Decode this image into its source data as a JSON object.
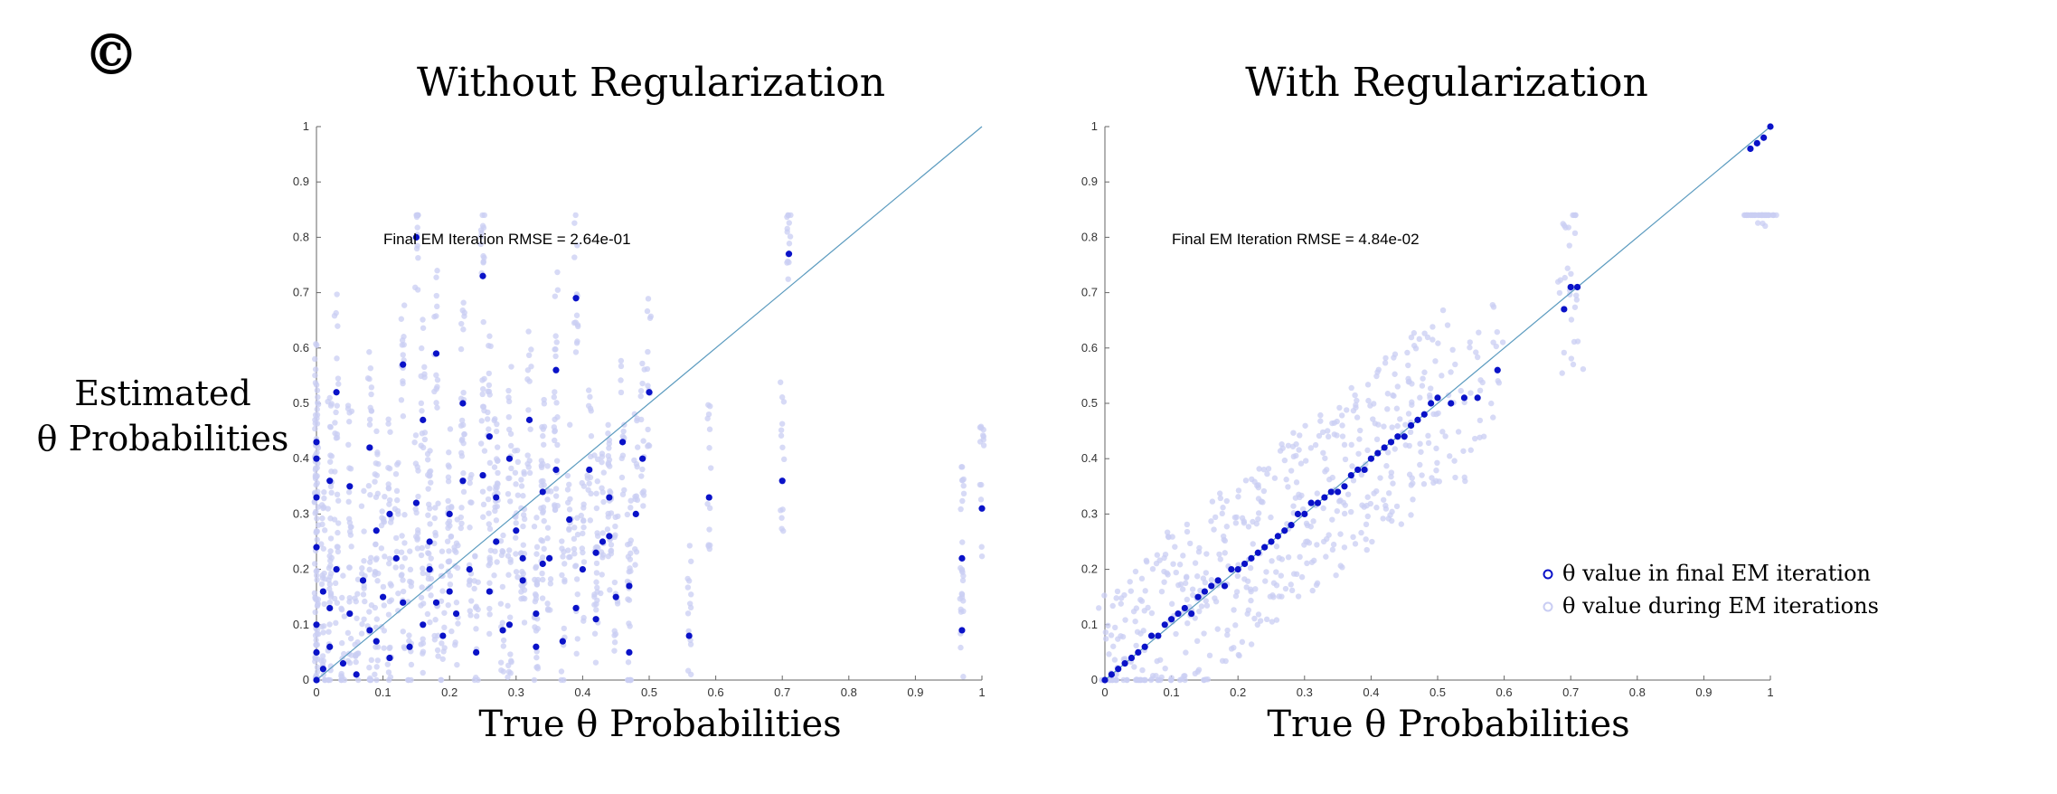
{
  "figure": {
    "panel_label": "©",
    "ylabel_line1": "Estimated",
    "ylabel_line2": "θ Probabilities"
  },
  "chart_data": [
    {
      "type": "scatter",
      "title": "Without Regularization",
      "xlabel": "True θ Probabilities",
      "ylabel": "",
      "xlim": [
        0,
        1
      ],
      "ylim": [
        0,
        1
      ],
      "xticks": [
        "0",
        "0.1",
        "0.2",
        "0.3",
        "0.4",
        "0.5",
        "0.6",
        "0.7",
        "0.8",
        "0.9",
        "1"
      ],
      "yticks": [
        "0",
        "0.1",
        "0.2",
        "0.3",
        "0.4",
        "0.5",
        "0.6",
        "0.7",
        "0.8",
        "0.9",
        "1"
      ],
      "annotation": "Final EM Iteration RMSE = 2.64e-01",
      "reference_line": {
        "x": [
          0,
          1
        ],
        "y": [
          0,
          1
        ],
        "color": "#5b9bbf"
      },
      "series": [
        {
          "name": "θ value in final EM iteration",
          "color": "#0a12c8",
          "x": [
            0.0,
            0.0,
            0.0,
            0.0,
            0.0,
            0.0,
            0.0,
            0.01,
            0.01,
            0.02,
            0.02,
            0.03,
            0.03,
            0.04,
            0.05,
            0.06,
            0.07,
            0.08,
            0.09,
            0.1,
            0.11,
            0.12,
            0.13,
            0.14,
            0.15,
            0.16,
            0.17,
            0.18,
            0.19,
            0.2,
            0.21,
            0.22,
            0.23,
            0.24,
            0.25,
            0.26,
            0.27,
            0.28,
            0.29,
            0.3,
            0.31,
            0.32,
            0.33,
            0.34,
            0.35,
            0.36,
            0.37,
            0.38,
            0.39,
            0.4,
            0.41,
            0.42,
            0.43,
            0.44,
            0.45,
            0.46,
            0.47,
            0.48,
            0.49,
            0.5,
            0.56,
            0.59,
            0.7,
            0.71,
            0.97,
            0.97,
            1.0,
            0.13,
            0.16,
            0.2,
            0.27,
            0.36,
            0.05,
            0.09,
            0.26,
            0.33,
            0.17,
            0.22,
            0.39,
            0.11,
            0.29,
            0.42,
            0.08,
            0.18,
            0.25,
            0.34,
            0.44,
            0.02,
            0.15,
            0.31,
            0.47
          ],
          "y": [
            0.0,
            0.05,
            0.1,
            0.24,
            0.33,
            0.4,
            0.43,
            0.02,
            0.16,
            0.06,
            0.13,
            0.2,
            0.52,
            0.03,
            0.12,
            0.01,
            0.18,
            0.09,
            0.07,
            0.15,
            0.04,
            0.22,
            0.14,
            0.06,
            0.8,
            0.1,
            0.25,
            0.59,
            0.08,
            0.3,
            0.12,
            0.36,
            0.2,
            0.05,
            0.73,
            0.16,
            0.33,
            0.09,
            0.4,
            0.27,
            0.18,
            0.47,
            0.12,
            0.34,
            0.22,
            0.56,
            0.07,
            0.29,
            0.69,
            0.2,
            0.38,
            0.11,
            0.25,
            0.33,
            0.15,
            0.43,
            0.05,
            0.3,
            0.4,
            0.52,
            0.08,
            0.33,
            0.36,
            0.77,
            0.22,
            0.09,
            0.31,
            0.57,
            0.47,
            0.16,
            0.25,
            0.38,
            0.35,
            0.27,
            0.44,
            0.06,
            0.2,
            0.5,
            0.13,
            0.3,
            0.1,
            0.23,
            0.42,
            0.14,
            0.37,
            0.21,
            0.26,
            0.36,
            0.32,
            0.22,
            0.17
          ],
          "marker": "filled-circle"
        },
        {
          "name": "θ value during EM iterations",
          "color": "#c9cdf3",
          "generated": "faint vertical streaks of intermediate EM values around each final estimate",
          "marker": "faint-circle"
        }
      ]
    },
    {
      "type": "scatter",
      "title": "With Regularization",
      "xlabel": "True θ Probabilities",
      "ylabel": "",
      "xlim": [
        0,
        1
      ],
      "ylim": [
        0,
        1
      ],
      "xticks": [
        "0",
        "0.1",
        "0.2",
        "0.3",
        "0.4",
        "0.5",
        "0.6",
        "0.7",
        "0.8",
        "0.9",
        "1"
      ],
      "yticks": [
        "0",
        "0.1",
        "0.2",
        "0.3",
        "0.4",
        "0.5",
        "0.6",
        "0.7",
        "0.8",
        "0.9",
        "1"
      ],
      "annotation": "Final EM Iteration RMSE = 4.84e-02",
      "reference_line": {
        "x": [
          0,
          1
        ],
        "y": [
          0,
          1
        ],
        "color": "#5b9bbf"
      },
      "legend": {
        "position": "bottom-right",
        "items": [
          "θ value in final EM iteration",
          "θ value during EM iterations"
        ]
      },
      "series": [
        {
          "name": "θ value in final EM iteration",
          "color": "#0a12c8",
          "x": [
            0.0,
            0.01,
            0.02,
            0.03,
            0.04,
            0.05,
            0.06,
            0.07,
            0.08,
            0.09,
            0.1,
            0.11,
            0.12,
            0.13,
            0.14,
            0.15,
            0.16,
            0.17,
            0.18,
            0.19,
            0.2,
            0.21,
            0.22,
            0.23,
            0.24,
            0.25,
            0.26,
            0.27,
            0.28,
            0.29,
            0.3,
            0.31,
            0.32,
            0.33,
            0.34,
            0.35,
            0.36,
            0.37,
            0.38,
            0.39,
            0.4,
            0.41,
            0.42,
            0.43,
            0.44,
            0.45,
            0.46,
            0.47,
            0.48,
            0.49,
            0.5,
            0.52,
            0.54,
            0.56,
            0.59,
            0.69,
            0.7,
            0.71,
            0.97,
            0.98,
            0.99,
            1.0
          ],
          "y": [
            0.0,
            0.01,
            0.02,
            0.03,
            0.04,
            0.05,
            0.06,
            0.08,
            0.08,
            0.1,
            0.11,
            0.12,
            0.13,
            0.12,
            0.15,
            0.16,
            0.17,
            0.18,
            0.17,
            0.2,
            0.2,
            0.21,
            0.22,
            0.23,
            0.24,
            0.25,
            0.26,
            0.27,
            0.28,
            0.3,
            0.3,
            0.32,
            0.32,
            0.33,
            0.34,
            0.34,
            0.35,
            0.37,
            0.38,
            0.38,
            0.4,
            0.41,
            0.42,
            0.43,
            0.44,
            0.44,
            0.46,
            0.47,
            0.48,
            0.5,
            0.51,
            0.5,
            0.51,
            0.51,
            0.56,
            0.67,
            0.71,
            0.71,
            0.96,
            0.97,
            0.98,
            1.0
          ],
          "marker": "filled-circle"
        },
        {
          "name": "θ value during EM iterations",
          "color": "#c9cdf3",
          "generated": "faint scattered intermediate EM values concentrated near the diagonal",
          "marker": "faint-circle"
        }
      ]
    }
  ]
}
